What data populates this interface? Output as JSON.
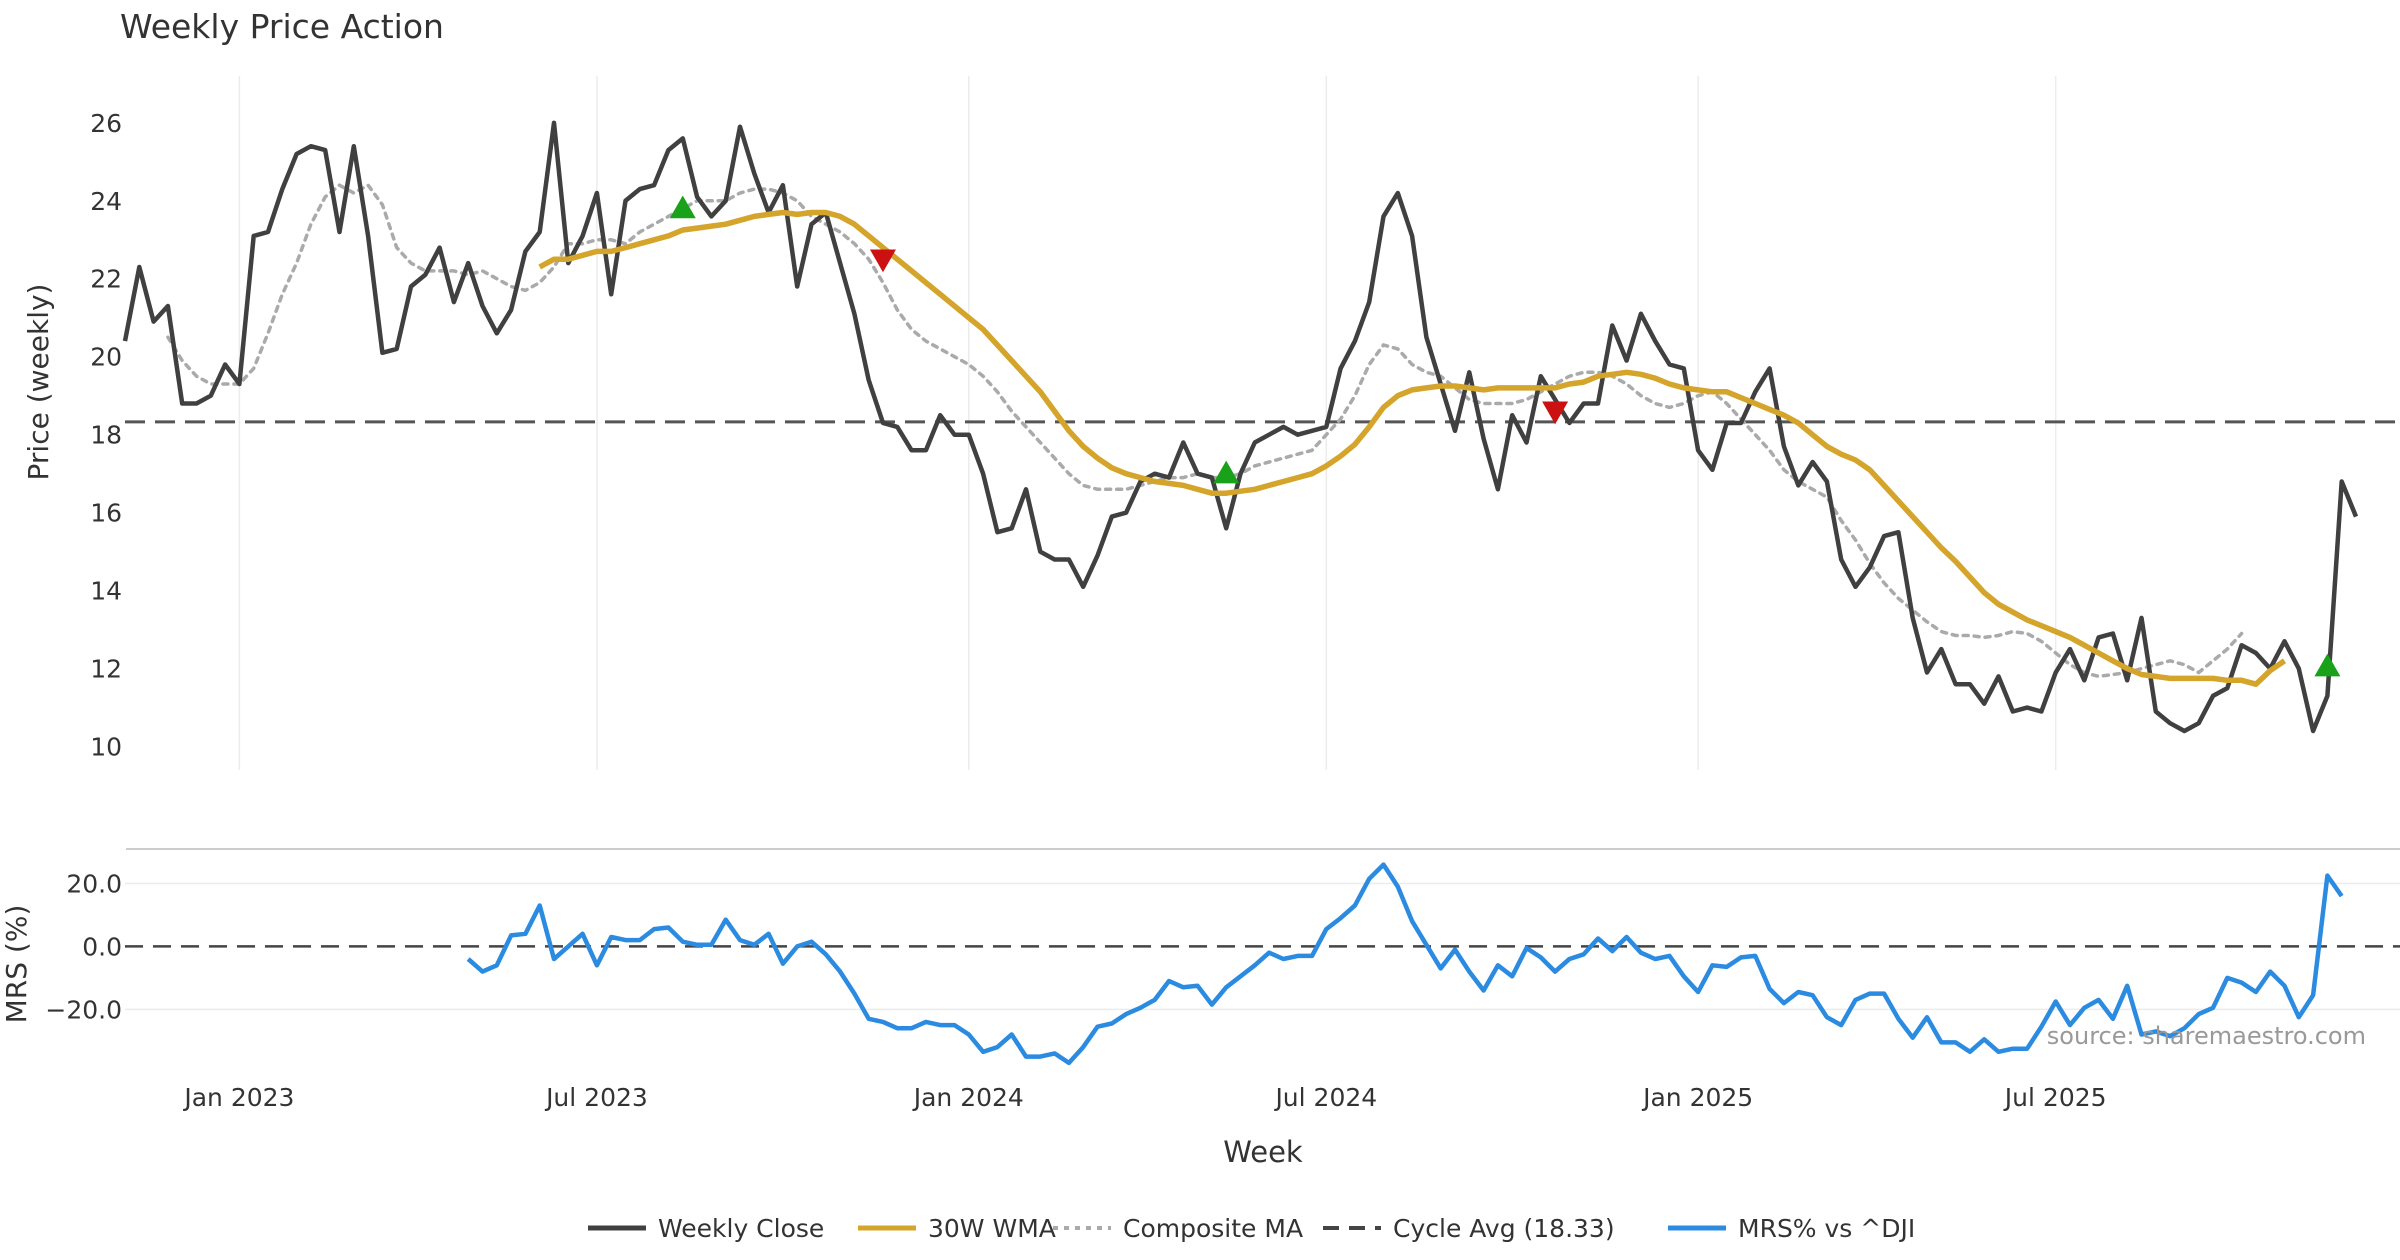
{
  "chart_data": [
    {
      "type": "line",
      "title": "Weekly Price Action",
      "xlabel": "",
      "ylabel": "Price (weekly)",
      "ylim": [
        9.4,
        27.2
      ],
      "yticks": [
        10,
        12,
        14,
        16,
        18,
        20,
        22,
        24,
        26
      ],
      "x_start": "2022-09-18",
      "x_end": "2025-11-09",
      "series": [
        {
          "name": "Weekly Close",
          "color": "#404040",
          "values": [
            20.4,
            22.3,
            20.9,
            21.3,
            18.8,
            18.8,
            19.0,
            19.8,
            19.3,
            23.1,
            23.2,
            24.3,
            25.2,
            25.4,
            25.3,
            23.2,
            25.4,
            23.1,
            20.1,
            20.2,
            21.8,
            22.1,
            22.8,
            21.4,
            22.4,
            21.3,
            20.6,
            21.2,
            22.7,
            23.2,
            26.0,
            22.4,
            23.1,
            24.2,
            21.6,
            24.0,
            24.3,
            24.4,
            25.3,
            25.6,
            24.1,
            23.6,
            24.0,
            25.9,
            24.7,
            23.7,
            24.4,
            21.8,
            23.4,
            23.7,
            22.4,
            21.1,
            19.4,
            18.3,
            18.2,
            17.6,
            17.6,
            18.5,
            18.0,
            18.0,
            17.0,
            15.5,
            15.6,
            16.6,
            15.0,
            14.8,
            14.8,
            14.1,
            14.9,
            15.9,
            16.0,
            16.8,
            17.0,
            16.9,
            17.8,
            17.0,
            16.9,
            15.6,
            17.0,
            17.8,
            18.0,
            18.2,
            18.0,
            18.1,
            18.2,
            19.7,
            20.4,
            21.4,
            23.6,
            24.2,
            23.1,
            20.5,
            19.3,
            18.1,
            19.6,
            17.9,
            16.6,
            18.5,
            17.8,
            19.5,
            18.9,
            18.3,
            18.8,
            18.8,
            20.8,
            19.9,
            21.1,
            20.4,
            19.8,
            19.7,
            17.6,
            17.1,
            18.3,
            18.3,
            19.1,
            19.7,
            17.7,
            16.7,
            17.3,
            16.8,
            14.8,
            14.1,
            14.6,
            15.4,
            15.5,
            13.3,
            11.9,
            12.5,
            11.6,
            11.6,
            11.1,
            11.8,
            10.9,
            11.0,
            10.9,
            11.9,
            12.5,
            11.7,
            12.8,
            12.9,
            11.7,
            13.3,
            10.9,
            10.6,
            10.4,
            10.6,
            11.3,
            11.5,
            12.6,
            12.4,
            12.0,
            12.7,
            12.0,
            10.4,
            11.3,
            16.8,
            15.9
          ]
        },
        {
          "name": "30W WMA",
          "color": "#d4a52a",
          "start_index": 29,
          "values": [
            22.3,
            22.5,
            22.5,
            22.6,
            22.7,
            22.7,
            22.8,
            22.9,
            23.0,
            23.1,
            23.25,
            23.3,
            23.35,
            23.4,
            23.5,
            23.6,
            23.65,
            23.7,
            23.65,
            23.7,
            23.7,
            23.6,
            23.4,
            23.1,
            22.8,
            22.5,
            22.2,
            21.9,
            21.6,
            21.3,
            21.0,
            20.7,
            20.3,
            19.9,
            19.5,
            19.1,
            18.6,
            18.1,
            17.7,
            17.4,
            17.15,
            17.0,
            16.9,
            16.8,
            16.75,
            16.7,
            16.6,
            16.5,
            16.5,
            16.55,
            16.6,
            16.7,
            16.8,
            16.9,
            17.0,
            17.2,
            17.45,
            17.75,
            18.2,
            18.7,
            19.0,
            19.15,
            19.2,
            19.25,
            19.25,
            19.2,
            19.15,
            19.2,
            19.2,
            19.2,
            19.2,
            19.2,
            19.3,
            19.35,
            19.5,
            19.55,
            19.6,
            19.55,
            19.45,
            19.3,
            19.2,
            19.15,
            19.1,
            19.1,
            18.95,
            18.8,
            18.65,
            18.5,
            18.3,
            18.0,
            17.7,
            17.5,
            17.35,
            17.1,
            16.7,
            16.3,
            15.9,
            15.5,
            15.1,
            14.75,
            14.35,
            13.95,
            13.65,
            13.45,
            13.25,
            13.1,
            12.95,
            12.8,
            12.6,
            12.4,
            12.2,
            12.0,
            11.85,
            11.8,
            11.75,
            11.75,
            11.75,
            11.75,
            11.7,
            11.7,
            11.6,
            11.95,
            12.2
          ]
        },
        {
          "name": "Composite MA",
          "color": "#aaaaaa",
          "start_index": 3,
          "values": [
            20.5,
            19.9,
            19.5,
            19.3,
            19.3,
            19.3,
            19.7,
            20.6,
            21.6,
            22.4,
            23.4,
            24.1,
            24.4,
            24.2,
            24.4,
            23.9,
            22.8,
            22.4,
            22.2,
            22.2,
            22.2,
            22.1,
            22.2,
            22.0,
            21.8,
            21.7,
            21.9,
            22.3,
            22.9,
            22.9,
            23.0,
            23.0,
            22.9,
            23.2,
            23.4,
            23.6,
            23.8,
            24.0,
            24.0,
            24.0,
            24.2,
            24.3,
            24.3,
            24.2,
            24.0,
            23.6,
            23.4,
            23.2,
            22.9,
            22.5,
            21.9,
            21.2,
            20.7,
            20.4,
            20.2,
            20.0,
            19.8,
            19.5,
            19.1,
            18.6,
            18.2,
            17.8,
            17.4,
            17.0,
            16.7,
            16.6,
            16.6,
            16.6,
            16.7,
            16.8,
            16.9,
            16.9,
            17.0,
            16.9,
            16.9,
            17.0,
            17.2,
            17.3,
            17.4,
            17.5,
            17.6,
            18.0,
            18.4,
            19.0,
            19.8,
            20.3,
            20.2,
            19.8,
            19.6,
            19.5,
            19.2,
            18.9,
            18.8,
            18.8,
            18.8,
            18.9,
            19.1,
            19.3,
            19.5,
            19.6,
            19.6,
            19.5,
            19.3,
            19.0,
            18.8,
            18.7,
            18.8,
            19.0,
            19.1,
            18.8,
            18.4,
            18.0,
            17.6,
            17.1,
            16.8,
            16.6,
            16.4,
            15.8,
            15.3,
            14.7,
            14.2,
            13.8,
            13.5,
            13.2,
            12.95,
            12.85,
            12.85,
            12.8,
            12.85,
            12.95,
            12.9,
            12.7,
            12.4,
            12.1,
            11.9,
            11.8,
            11.85,
            11.9,
            12.0,
            12.1,
            12.2,
            12.1,
            11.9,
            12.2,
            12.5,
            12.9
          ]
        }
      ],
      "reference_lines": [
        {
          "name": "Cycle Avg (18.33)",
          "value": 18.33,
          "style": "dashed",
          "color": "#555555"
        }
      ],
      "markers": [
        {
          "type": "buy",
          "index": 39,
          "value": 23.8,
          "color": "#1aa11a"
        },
        {
          "type": "sell",
          "index": 53,
          "value": 22.5,
          "color": "#cc1111"
        },
        {
          "type": "buy",
          "index": 77,
          "value": 17.0,
          "color": "#1aa11a"
        },
        {
          "type": "sell",
          "index": 100,
          "value": 18.6,
          "color": "#cc1111"
        },
        {
          "type": "buy",
          "index": 154,
          "value": 12.05,
          "color": "#1aa11a"
        }
      ],
      "grid": "x-only",
      "legend": "bottom"
    },
    {
      "type": "line",
      "title": "",
      "xlabel": "Week",
      "ylabel": "MRS (%)",
      "ylim": [
        -38,
        30
      ],
      "yticks": [
        20.0,
        0.0,
        -20.0
      ],
      "ytick_labels": [
        "20.0",
        "0.0",
        "−20.0"
      ],
      "xticks": [
        {
          "label": "Jan 2023",
          "index": 8
        },
        {
          "label": "Jul 2023",
          "index": 33
        },
        {
          "label": "Jan 2024",
          "index": 59
        },
        {
          "label": "Jul 2024",
          "index": 84
        },
        {
          "label": "Jan 2025",
          "index": 110
        },
        {
          "label": "Jul 2025",
          "index": 135
        }
      ],
      "series": [
        {
          "name": "MRS% vs ^DJI",
          "color": "#2b8be0",
          "start_index": 24,
          "values": [
            -4,
            -8,
            -6,
            3.5,
            4,
            13,
            -4,
            0,
            4,
            -6,
            3,
            2,
            2,
            5.5,
            6,
            1.5,
            0.5,
            0.5,
            8.5,
            2,
            0.5,
            4,
            -5.5,
            0,
            1.5,
            -2.5,
            -8,
            -15,
            -23,
            -24,
            -26,
            -26,
            -24,
            -25,
            -25,
            -28,
            -33.5,
            -32,
            -28,
            -35,
            -35,
            -34,
            -37,
            -32,
            -25.5,
            -24.5,
            -21.5,
            -19.5,
            -17,
            -11,
            -13,
            -12.5,
            -18.5,
            -13,
            -9.5,
            -6,
            -2,
            -4,
            -3,
            -3,
            5.5,
            9,
            13,
            21.5,
            26,
            19,
            8,
            0.5,
            -7,
            -1,
            -8,
            -14,
            -6,
            -9.5,
            -0.5,
            -3.5,
            -8,
            -4,
            -2.5,
            2.5,
            -1.5,
            3,
            -2,
            -4,
            -3,
            -9.5,
            -14.5,
            -6,
            -6.5,
            -3.5,
            -3,
            -13.5,
            -18,
            -14.5,
            -15.5,
            -22.5,
            -25,
            -17,
            -15,
            -15,
            -23,
            -29,
            -22.5,
            -30.5,
            -30.5,
            -33.5,
            -29.5,
            -33.5,
            -32.5,
            -32.5,
            -25.5,
            -17.5,
            -25,
            -19.5,
            -17,
            -23,
            -12.5,
            -28,
            -27,
            -28.5,
            -26,
            -21.5,
            -19.5,
            -10,
            -11.5,
            -14.5,
            -8,
            -12.5,
            -22.5,
            -15.5,
            22.5,
            16
          ]
        }
      ],
      "reference_lines": [
        {
          "name": "zero",
          "value": 0,
          "style": "dashed",
          "color": "#444444"
        }
      ],
      "legend": "bottom"
    }
  ],
  "watermark": "source: sharemaestro.com",
  "legend_items": [
    {
      "label": "Weekly Close",
      "color": "#404040",
      "style": "solid"
    },
    {
      "label": "30W WMA",
      "color": "#d4a52a",
      "style": "solid"
    },
    {
      "label": "Composite MA",
      "color": "#aaaaaa",
      "style": "dotted"
    },
    {
      "label": "Cycle Avg (18.33)",
      "color": "#444444",
      "style": "dashed"
    },
    {
      "label": "MRS% vs ^DJI",
      "color": "#2b8be0",
      "style": "solid"
    }
  ]
}
